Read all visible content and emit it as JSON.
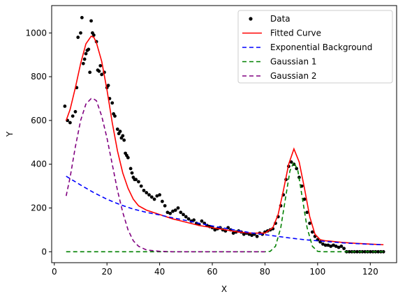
{
  "chart_data": {
    "type": "line",
    "title": "",
    "xlabel": "X",
    "ylabel": "Y",
    "xlim": [
      -1,
      130
    ],
    "ylim": [
      -50,
      1125
    ],
    "xticks": [
      0,
      20,
      40,
      60,
      80,
      100,
      120
    ],
    "yticks": [
      0,
      200,
      400,
      600,
      800,
      1000
    ],
    "xtick_labels": [
      "0",
      "20",
      "40",
      "60",
      "80",
      "100",
      "120"
    ],
    "ytick_labels": [
      "0",
      "200",
      "400",
      "600",
      "800",
      "1000"
    ],
    "grid": false,
    "legend_position": "top-right",
    "legend": [
      {
        "label": "Data",
        "style": "marker",
        "color": "#000000"
      },
      {
        "label": "Fitted Curve",
        "style": "solid",
        "color": "#ff0000"
      },
      {
        "label": "Exponential Background",
        "style": "dashed",
        "color": "#0000ff"
      },
      {
        "label": "Gaussian 1",
        "style": "dashed",
        "color": "#008000"
      },
      {
        "label": "Gaussian 2",
        "style": "dashed",
        "color": "#800080"
      }
    ],
    "series": [
      {
        "name": "Data",
        "kind": "scatter",
        "color": "#000000",
        "points": [
          [
            4,
            665
          ],
          [
            5,
            600
          ],
          [
            6,
            590
          ],
          [
            7,
            620
          ],
          [
            8,
            640
          ],
          [
            8.5,
            750
          ],
          [
            9,
            980
          ],
          [
            10,
            1000
          ],
          [
            10.5,
            1070
          ],
          [
            11,
            860
          ],
          [
            11.5,
            880
          ],
          [
            12,
            905
          ],
          [
            12.5,
            920
          ],
          [
            13,
            925
          ],
          [
            13.5,
            820
          ],
          [
            14,
            1055
          ],
          [
            14.5,
            1000
          ],
          [
            15,
            990
          ],
          [
            16,
            960
          ],
          [
            16.5,
            830
          ],
          [
            17,
            825
          ],
          [
            17.5,
            850
          ],
          [
            18,
            810
          ],
          [
            19,
            820
          ],
          [
            20,
            750
          ],
          [
            20.5,
            760
          ],
          [
            21,
            700
          ],
          [
            22,
            680
          ],
          [
            22.5,
            630
          ],
          [
            23,
            620
          ],
          [
            24,
            560
          ],
          [
            24.5,
            540
          ],
          [
            25,
            550
          ],
          [
            25.5,
            520
          ],
          [
            26,
            530
          ],
          [
            26.5,
            510
          ],
          [
            27,
            450
          ],
          [
            27.5,
            440
          ],
          [
            28,
            430
          ],
          [
            29,
            380
          ],
          [
            29.5,
            360
          ],
          [
            30,
            340
          ],
          [
            30.5,
            330
          ],
          [
            31,
            330
          ],
          [
            32,
            320
          ],
          [
            33,
            300
          ],
          [
            34,
            280
          ],
          [
            35,
            270
          ],
          [
            36,
            260
          ],
          [
            37,
            250
          ],
          [
            38,
            240
          ],
          [
            39,
            255
          ],
          [
            40,
            260
          ],
          [
            41,
            230
          ],
          [
            42,
            210
          ],
          [
            43,
            180
          ],
          [
            44,
            175
          ],
          [
            45,
            185
          ],
          [
            46,
            190
          ],
          [
            47,
            200
          ],
          [
            48,
            180
          ],
          [
            49,
            170
          ],
          [
            50,
            160
          ],
          [
            51,
            150
          ],
          [
            52,
            140
          ],
          [
            53,
            145
          ],
          [
            54,
            130
          ],
          [
            55,
            125
          ],
          [
            56,
            140
          ],
          [
            57,
            130
          ],
          [
            58,
            120
          ],
          [
            59,
            115
          ],
          [
            60,
            110
          ],
          [
            61,
            100
          ],
          [
            62,
            105
          ],
          [
            63,
            110
          ],
          [
            64,
            100
          ],
          [
            65,
            95
          ],
          [
            66,
            110
          ],
          [
            67,
            100
          ],
          [
            68,
            85
          ],
          [
            69,
            90
          ],
          [
            70,
            95
          ],
          [
            71,
            90
          ],
          [
            72,
            80
          ],
          [
            73,
            85
          ],
          [
            74,
            80
          ],
          [
            75,
            75
          ],
          [
            76,
            80
          ],
          [
            77,
            70
          ],
          [
            78,
            85
          ],
          [
            79,
            80
          ],
          [
            80,
            90
          ],
          [
            81,
            95
          ],
          [
            82,
            100
          ],
          [
            83,
            105
          ],
          [
            84,
            130
          ],
          [
            85,
            160
          ],
          [
            86,
            210
          ],
          [
            87,
            260
          ],
          [
            88,
            330
          ],
          [
            89,
            390
          ],
          [
            90,
            410
          ],
          [
            91,
            400
          ],
          [
            92,
            380
          ],
          [
            93,
            340
          ],
          [
            94,
            300
          ],
          [
            95,
            240
          ],
          [
            96,
            180
          ],
          [
            97,
            130
          ],
          [
            98,
            90
          ],
          [
            99,
            70
          ],
          [
            100,
            55
          ],
          [
            101,
            45
          ],
          [
            102,
            35
          ],
          [
            103,
            30
          ],
          [
            104,
            30
          ],
          [
            105,
            25
          ],
          [
            106,
            30
          ],
          [
            107,
            25
          ],
          [
            108,
            20
          ],
          [
            109,
            25
          ],
          [
            110,
            15
          ],
          [
            111,
            0
          ],
          [
            112,
            0
          ],
          [
            113,
            0
          ],
          [
            114,
            0
          ],
          [
            115,
            0
          ],
          [
            116,
            0
          ],
          [
            117,
            0
          ],
          [
            118,
            0
          ],
          [
            119,
            0
          ],
          [
            120,
            0
          ],
          [
            121,
            0
          ],
          [
            122,
            0
          ],
          [
            123,
            0
          ],
          [
            124,
            0
          ],
          [
            125,
            0
          ]
        ]
      },
      {
        "name": "Fitted Curve",
        "kind": "line",
        "color": "#ff0000",
        "dash": "",
        "points": [
          [
            4.5,
            600
          ],
          [
            6,
            650
          ],
          [
            8,
            750
          ],
          [
            10,
            860
          ],
          [
            12,
            950
          ],
          [
            14,
            985
          ],
          [
            15,
            980
          ],
          [
            16,
            955
          ],
          [
            18,
            870
          ],
          [
            20,
            740
          ],
          [
            22,
            590
          ],
          [
            24,
            460
          ],
          [
            26,
            360
          ],
          [
            28,
            290
          ],
          [
            30,
            240
          ],
          [
            32,
            210
          ],
          [
            35,
            190
          ],
          [
            40,
            170
          ],
          [
            45,
            150
          ],
          [
            50,
            135
          ],
          [
            55,
            120
          ],
          [
            60,
            110
          ],
          [
            65,
            100
          ],
          [
            70,
            90
          ],
          [
            75,
            85
          ],
          [
            80,
            85
          ],
          [
            83,
            110
          ],
          [
            85,
            170
          ],
          [
            87,
            280
          ],
          [
            89,
            400
          ],
          [
            91,
            470
          ],
          [
            93,
            410
          ],
          [
            95,
            290
          ],
          [
            97,
            160
          ],
          [
            99,
            80
          ],
          [
            101,
            55
          ],
          [
            103,
            50
          ],
          [
            105,
            48
          ],
          [
            110,
            42
          ],
          [
            115,
            38
          ],
          [
            120,
            35
          ],
          [
            125,
            32
          ]
        ]
      },
      {
        "name": "Exponential Background",
        "kind": "line",
        "color": "#0000ff",
        "dash": "6,4",
        "points": [
          [
            4.5,
            345
          ],
          [
            10,
            305
          ],
          [
            15,
            270
          ],
          [
            20,
            240
          ],
          [
            25,
            215
          ],
          [
            30,
            195
          ],
          [
            35,
            180
          ],
          [
            40,
            168
          ],
          [
            45,
            155
          ],
          [
            50,
            143
          ],
          [
            55,
            130
          ],
          [
            60,
            118
          ],
          [
            65,
            107
          ],
          [
            70,
            96
          ],
          [
            75,
            86
          ],
          [
            80,
            78
          ],
          [
            85,
            70
          ],
          [
            90,
            62
          ],
          [
            95,
            55
          ],
          [
            100,
            50
          ],
          [
            105,
            45
          ],
          [
            110,
            40
          ],
          [
            115,
            37
          ],
          [
            120,
            34
          ],
          [
            125,
            32
          ]
        ]
      },
      {
        "name": "Gaussian 1",
        "kind": "line",
        "color": "#008000",
        "dash": "6,4",
        "points": [
          [
            4.5,
            0
          ],
          [
            20,
            0
          ],
          [
            40,
            0
          ],
          [
            60,
            0
          ],
          [
            80,
            0
          ],
          [
            82,
            2
          ],
          [
            84,
            25
          ],
          [
            86,
            110
          ],
          [
            88,
            260
          ],
          [
            89.5,
            370
          ],
          [
            91,
            410
          ],
          [
            92.5,
            370
          ],
          [
            94,
            260
          ],
          [
            96,
            110
          ],
          [
            98,
            25
          ],
          [
            100,
            2
          ],
          [
            102,
            0
          ],
          [
            110,
            0
          ],
          [
            125,
            0
          ]
        ]
      },
      {
        "name": "Gaussian 2",
        "kind": "line",
        "color": "#800080",
        "dash": "6,4",
        "points": [
          [
            4.5,
            255
          ],
          [
            6,
            340
          ],
          [
            8,
            480
          ],
          [
            10,
            600
          ],
          [
            12,
            675
          ],
          [
            14,
            700
          ],
          [
            15,
            698
          ],
          [
            16,
            690
          ],
          [
            18,
            620
          ],
          [
            20,
            520
          ],
          [
            22,
            400
          ],
          [
            24,
            280
          ],
          [
            26,
            180
          ],
          [
            28,
            100
          ],
          [
            30,
            50
          ],
          [
            32,
            25
          ],
          [
            35,
            8
          ],
          [
            40,
            2
          ],
          [
            45,
            0
          ],
          [
            50,
            0
          ],
          [
            55,
            0
          ],
          [
            60,
            0
          ],
          [
            65,
            0
          ],
          [
            70,
            0
          ],
          [
            75,
            0
          ],
          [
            80,
            0
          ]
        ]
      }
    ]
  }
}
